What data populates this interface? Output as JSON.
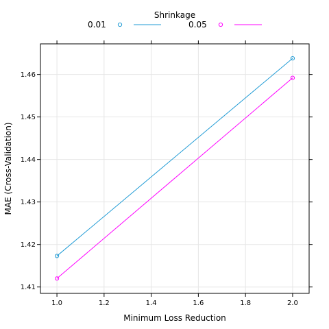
{
  "chart_data": {
    "type": "line",
    "title": "",
    "xlabel": "Minimum Loss Reduction",
    "ylabel": "MAE (Cross-Validation)",
    "xlim": [
      0.93,
      2.07
    ],
    "ylim": [
      1.4085,
      1.4672
    ],
    "x_ticks": [
      1.0,
      1.2,
      1.4,
      1.6,
      1.8,
      2.0
    ],
    "x_tick_labels": [
      "1.0",
      "1.2",
      "1.4",
      "1.6",
      "1.8",
      "2.0"
    ],
    "y_ticks": [
      1.41,
      1.42,
      1.43,
      1.44,
      1.45,
      1.46
    ],
    "y_tick_labels": [
      "1.41",
      "1.42",
      "1.43",
      "1.44",
      "1.45",
      "1.46"
    ],
    "grid": true,
    "legend": {
      "title": "Shrinkage",
      "placement": "top"
    },
    "x": [
      1.0,
      2.0
    ],
    "series": [
      {
        "name": "0.01",
        "color": "#1f9bd5",
        "values": [
          1.4173,
          1.4638
        ]
      },
      {
        "name": "0.05",
        "color": "#ff00ff",
        "values": [
          1.412,
          1.4592
        ]
      }
    ]
  }
}
